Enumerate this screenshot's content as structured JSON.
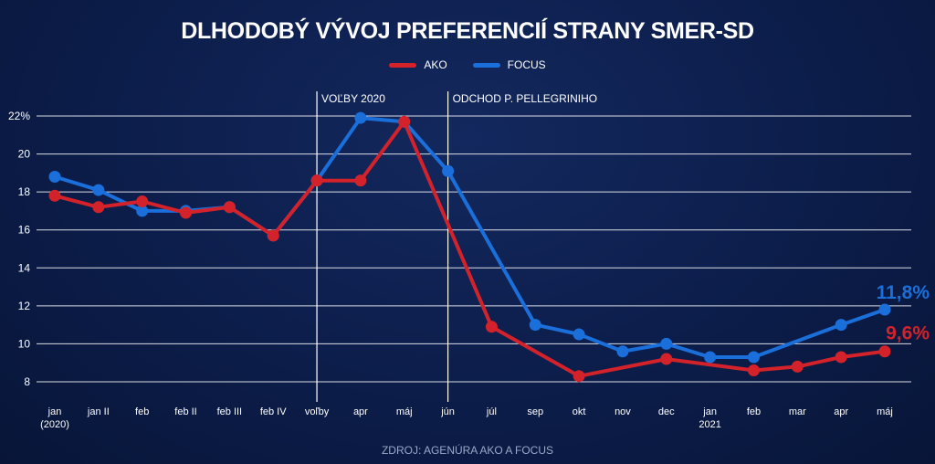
{
  "title": "DLHODOBÝ VÝVOJ PREFERENCIÍ STRANY SMER-SD",
  "source": "ZDROJ: AGENÚRA AKO A FOCUS",
  "colors": {
    "ako": "#d3222a",
    "focus": "#1a6fdb",
    "grid": "#ffffff",
    "background": "#0c1d4a"
  },
  "chart_data": {
    "type": "line",
    "title": "DLHODOBÝ VÝVOJ PREFERENCIÍ STRANY SMER-SD",
    "xlabel": "",
    "ylabel": "",
    "ylim": [
      7,
      22
    ],
    "yticks": [
      8,
      10,
      12,
      14,
      16,
      18,
      20,
      22
    ],
    "ytick_labels": [
      "8",
      "10",
      "12",
      "14",
      "16",
      "18",
      "20",
      "22%"
    ],
    "grid": true,
    "legend": "top-center",
    "categories": [
      "jan (2020)",
      "jan II",
      "feb",
      "feb II",
      "feb III",
      "feb IV",
      "voľby",
      "apr",
      "máj",
      "jún",
      "júl",
      "sep",
      "okt",
      "nov",
      "dec",
      "jan 2021",
      "feb",
      "mar",
      "apr",
      "máj"
    ],
    "x_tick_lines": [
      [
        "jan",
        "(2020)"
      ],
      [
        "jan II"
      ],
      [
        "feb"
      ],
      [
        "feb II"
      ],
      [
        "feb III"
      ],
      [
        "feb IV"
      ],
      [
        "voľby"
      ],
      [
        "apr"
      ],
      [
        "máj"
      ],
      [
        "jún"
      ],
      [
        "júl"
      ],
      [
        "sep"
      ],
      [
        "okt"
      ],
      [
        "nov"
      ],
      [
        "dec"
      ],
      [
        "jan",
        "2021"
      ],
      [
        "feb"
      ],
      [
        "mar"
      ],
      [
        "apr"
      ],
      [
        "máj"
      ]
    ],
    "series": [
      {
        "name": "AKO",
        "color": "#d3222a",
        "values": [
          17.8,
          17.2,
          17.5,
          16.9,
          17.2,
          15.7,
          18.6,
          18.6,
          21.7,
          null,
          10.9,
          null,
          8.3,
          null,
          9.2,
          null,
          8.6,
          8.8,
          9.3,
          9.6
        ],
        "end_label": "9,6%"
      },
      {
        "name": "FOCUS",
        "color": "#1a6fdb",
        "values": [
          18.8,
          18.1,
          17.0,
          17.0,
          17.2,
          15.7,
          18.6,
          21.9,
          21.7,
          19.1,
          null,
          11.0,
          10.5,
          9.6,
          10.0,
          9.3,
          9.3,
          null,
          11.0,
          11.8
        ],
        "end_label": "11,8%"
      }
    ],
    "annotations": [
      {
        "label": "VOĽBY 2020",
        "at_category": 6
      },
      {
        "label": "ODCHOD P. PELLEGRINIHO",
        "at_category": 9
      }
    ]
  }
}
